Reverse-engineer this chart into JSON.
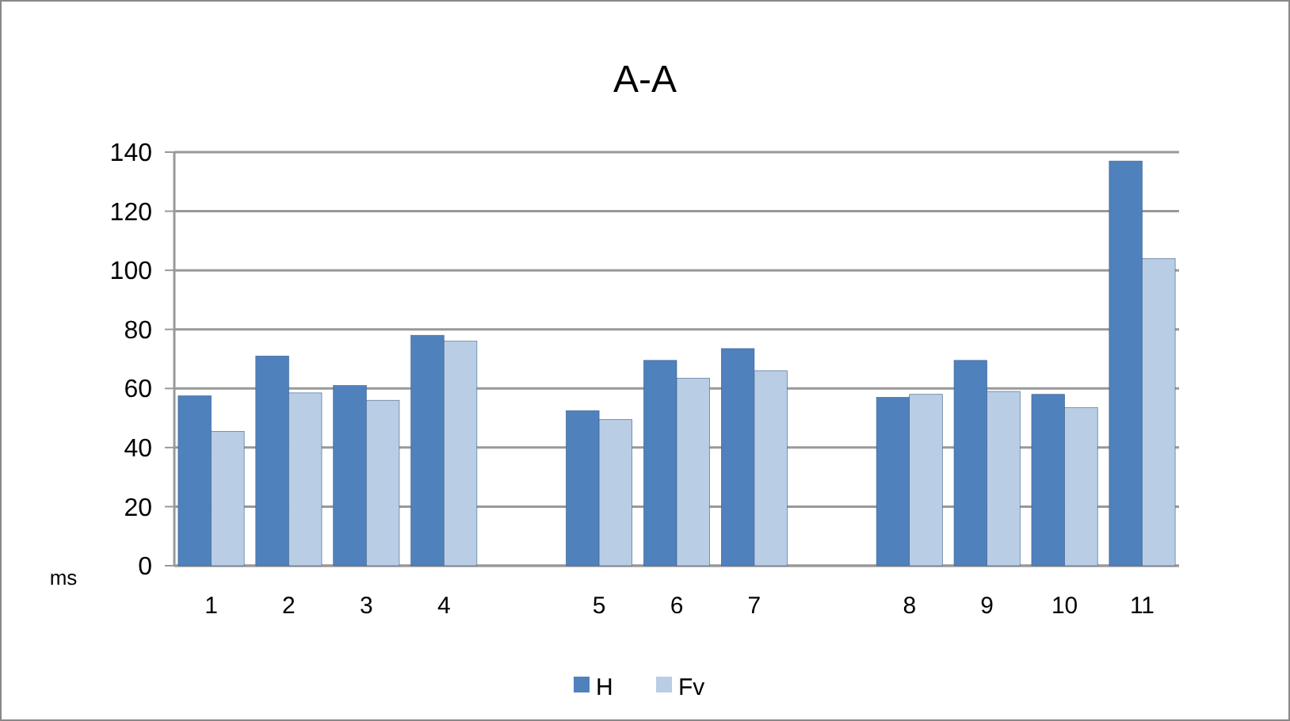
{
  "chart_data": {
    "type": "bar",
    "title": "A-A",
    "ylabel": "ms",
    "categories": [
      "1",
      "2",
      "3",
      "4",
      null,
      "5",
      "6",
      "7",
      null,
      "8",
      "9",
      "10",
      "11"
    ],
    "series": [
      {
        "name": "H",
        "color": "#4f81bd",
        "values": [
          57.5,
          71,
          61,
          78,
          null,
          52.5,
          69.5,
          73.5,
          null,
          57,
          69.5,
          58,
          137
        ]
      },
      {
        "name": "Fv",
        "color": "#b9cde5",
        "values": [
          45.5,
          58.5,
          56,
          76,
          null,
          49.5,
          63.5,
          66,
          null,
          58,
          59,
          53.5,
          104
        ]
      }
    ],
    "ylim": [
      0,
      140
    ],
    "yticks": [
      0,
      20,
      40,
      60,
      80,
      100,
      120,
      140
    ],
    "grid": "y",
    "legend": "bottom"
  }
}
